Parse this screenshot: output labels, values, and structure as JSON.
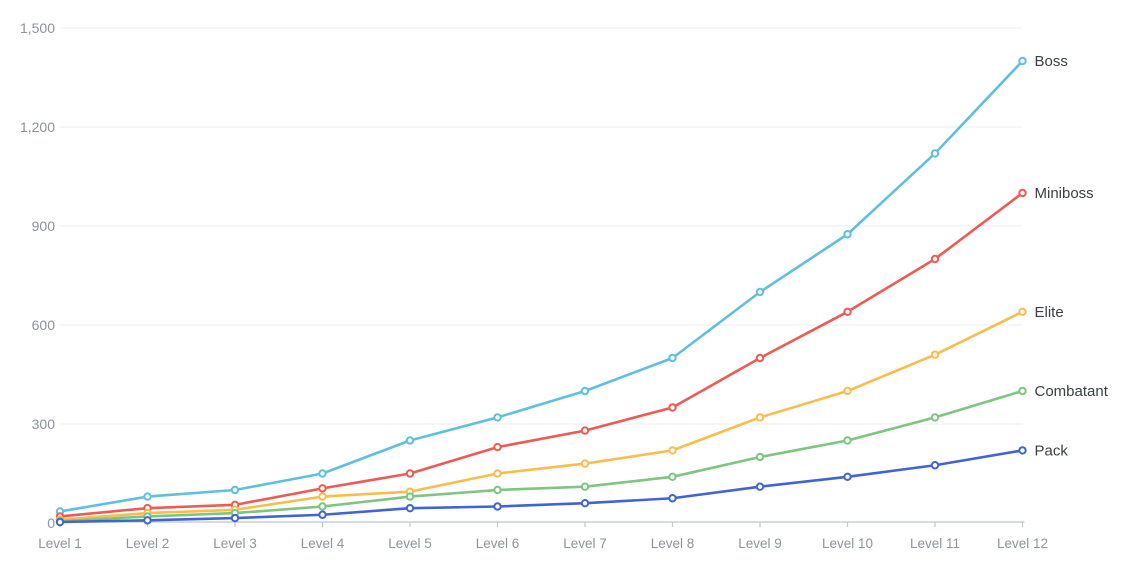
{
  "chart_data": {
    "type": "line",
    "title": "",
    "xlabel": "",
    "ylabel": "",
    "categories": [
      "Level 1",
      "Level 2",
      "Level 3",
      "Level 4",
      "Level 5",
      "Level 6",
      "Level 7",
      "Level 8",
      "Level 9",
      "Level 10",
      "Level 11",
      "Level 12"
    ],
    "series": [
      {
        "name": "Boss",
        "color": "#5FBFE0",
        "values": [
          35,
          80,
          100,
          150,
          250,
          320,
          400,
          500,
          700,
          875,
          1120,
          1400
        ]
      },
      {
        "name": "Miniboss",
        "color": "#EC5B56",
        "values": [
          20,
          45,
          55,
          105,
          150,
          230,
          280,
          350,
          500,
          640,
          800,
          1000
        ]
      },
      {
        "name": "Elite",
        "color": "#F8BD4D",
        "values": [
          10,
          30,
          40,
          80,
          95,
          150,
          180,
          220,
          320,
          400,
          510,
          640
        ]
      },
      {
        "name": "Combatant",
        "color": "#7EC57F",
        "values": [
          5,
          20,
          30,
          50,
          80,
          100,
          110,
          140,
          200,
          250,
          320,
          400
        ]
      },
      {
        "name": "Pack",
        "color": "#4164D4",
        "values": [
          3,
          8,
          15,
          25,
          45,
          50,
          60,
          75,
          110,
          140,
          175,
          220
        ]
      }
    ],
    "ylim": [
      0,
      1500
    ],
    "yticks": [
      {
        "value": 0,
        "label": "0"
      },
      {
        "value": 300,
        "label": "300"
      },
      {
        "value": 600,
        "label": "600"
      },
      {
        "value": 900,
        "label": "900"
      },
      {
        "value": 1200,
        "label": "1,200"
      },
      {
        "value": 1500,
        "label": "1,500"
      }
    ],
    "grid": true,
    "legend_position": "right-of-line-ends",
    "colors": {
      "background": "#FFFFFF",
      "gridline": "#E8EDF4",
      "axis_line": "#C2C6CC",
      "axis_tick": "#C2C6CC",
      "axis_label_text": "#8E939B",
      "series_label_text": "#3C4043",
      "marker_fill": "#FFFFFF"
    }
  }
}
